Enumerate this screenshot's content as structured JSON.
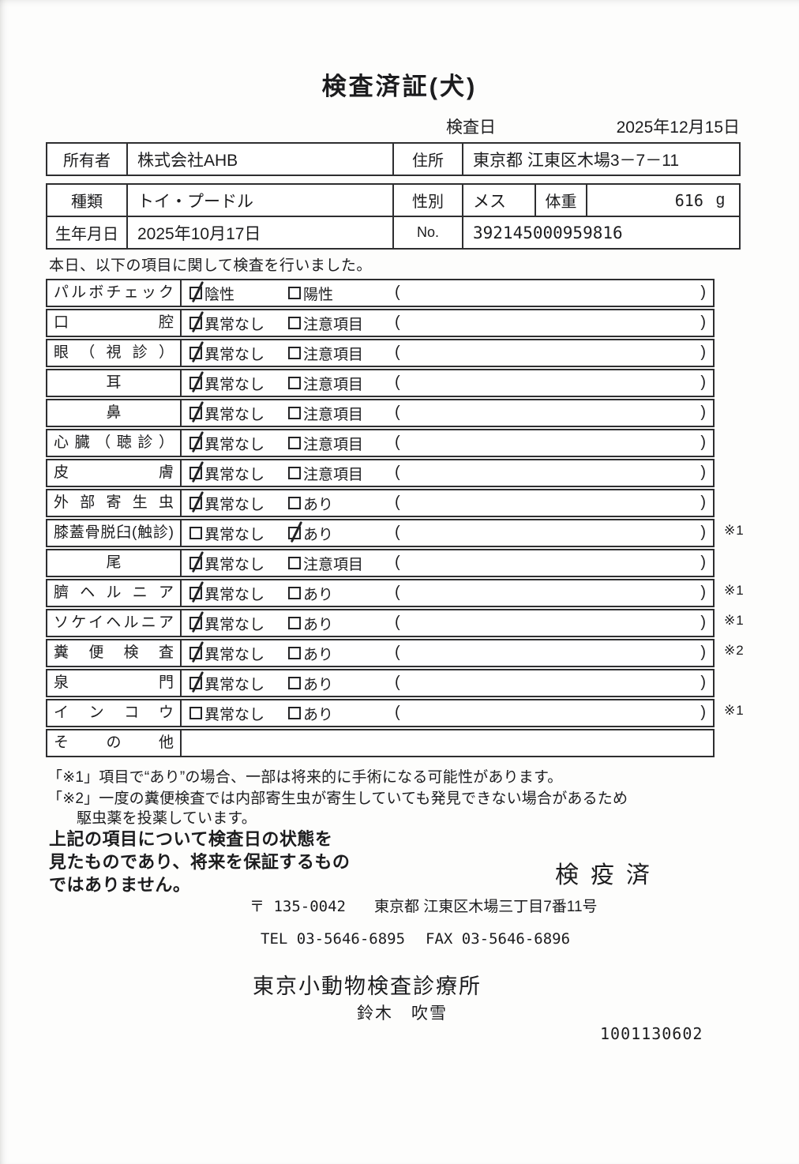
{
  "page": {
    "title": "検査済証(犬)",
    "exam_date_label": "検査日",
    "exam_date_value": "2025年12月15日"
  },
  "owner_table": {
    "owner_label": "所有者",
    "owner_value": "株式会社AHB",
    "address_label": "住所",
    "address_value": "東京都 江東区木場3－7－11"
  },
  "pet_table": {
    "breed_label": "種類",
    "breed_value": "トイ・プードル",
    "sex_label": "性別",
    "sex_value": "メス",
    "weight_label": "体重",
    "weight_value": "616",
    "weight_unit": "g",
    "birth_label": "生年月日",
    "birth_value": "2025年10月17日",
    "no_label": "No.",
    "no_value": "392145000959816"
  },
  "intro_text": "本日、以下の項目に関して検査を行いました。",
  "inspection": {
    "paren_open": "(",
    "paren_close": ")",
    "rows": [
      {
        "item": "パルボチェック",
        "opt1": "陰性",
        "opt1_checked": true,
        "opt2": "陽性",
        "opt2_checked": false,
        "mark": ""
      },
      {
        "item": "口腔",
        "opt1": "異常なし",
        "opt1_checked": true,
        "opt2": "注意項目",
        "opt2_checked": false,
        "mark": ""
      },
      {
        "item": "眼（視診）",
        "opt1": "異常なし",
        "opt1_checked": true,
        "opt2": "注意項目",
        "opt2_checked": false,
        "mark": ""
      },
      {
        "item": "耳",
        "opt1": "異常なし",
        "opt1_checked": true,
        "opt2": "注意項目",
        "opt2_checked": false,
        "mark": ""
      },
      {
        "item": "鼻",
        "opt1": "異常なし",
        "opt1_checked": true,
        "opt2": "注意項目",
        "opt2_checked": false,
        "mark": ""
      },
      {
        "item": "心臓（聴診）",
        "opt1": "異常なし",
        "opt1_checked": true,
        "opt2": "注意項目",
        "opt2_checked": false,
        "mark": ""
      },
      {
        "item": "皮膚",
        "opt1": "異常なし",
        "opt1_checked": true,
        "opt2": "注意項目",
        "opt2_checked": false,
        "mark": ""
      },
      {
        "item": "外部寄生虫",
        "opt1": "異常なし",
        "opt1_checked": true,
        "opt2": "あり",
        "opt2_checked": false,
        "mark": ""
      },
      {
        "item": "膝蓋骨脱臼(触診)",
        "opt1": "異常なし",
        "opt1_checked": false,
        "opt2": "あり",
        "opt2_checked": true,
        "mark": "※1"
      },
      {
        "item": "尾",
        "opt1": "異常なし",
        "opt1_checked": true,
        "opt2": "注意項目",
        "opt2_checked": false,
        "mark": ""
      },
      {
        "item": "臍ヘルニア",
        "opt1": "異常なし",
        "opt1_checked": true,
        "opt2": "あり",
        "opt2_checked": false,
        "mark": "※1"
      },
      {
        "item": "ソケイヘルニア",
        "opt1": "異常なし",
        "opt1_checked": true,
        "opt2": "あり",
        "opt2_checked": false,
        "mark": "※1"
      },
      {
        "item": "糞便検査",
        "opt1": "異常なし",
        "opt1_checked": true,
        "opt2": "あり",
        "opt2_checked": false,
        "mark": "※2"
      },
      {
        "item": "泉門",
        "opt1": "異常なし",
        "opt1_checked": true,
        "opt2": "あり",
        "opt2_checked": false,
        "mark": ""
      },
      {
        "item": "インコウ",
        "opt1": "異常なし",
        "opt1_checked": false,
        "opt2": "あり",
        "opt2_checked": false,
        "mark": "※1"
      },
      {
        "item": "その他",
        "opt1": null,
        "opt1_checked": false,
        "opt2": null,
        "opt2_checked": false,
        "mark": ""
      }
    ]
  },
  "footnotes": {
    "line1": "「※1」項目で“あり”の場合、一部は将来的に手術になる可能性があります。",
    "line2": "「※2」一度の糞便検査では内部寄生虫が寄生していても発見できない場合があるため",
    "line3": "駆虫薬を投薬しています。"
  },
  "disclaimer": {
    "line1": "上記の項目について検査日の状態を",
    "line2": "見たものであり、将来を保証するもの",
    "line3": "ではありません。"
  },
  "stamp_text": "検疫済",
  "clinic": {
    "postal_code": "〒 135-0042",
    "address": "東京都 江東区木場三丁目7番11号",
    "tel": "TEL 03-5646-6895",
    "fax": "FAX 03-5646-6896",
    "name": "東京小動物検査診療所",
    "veterinarian": "鈴木　吹雪",
    "document_number": "1001130602"
  }
}
